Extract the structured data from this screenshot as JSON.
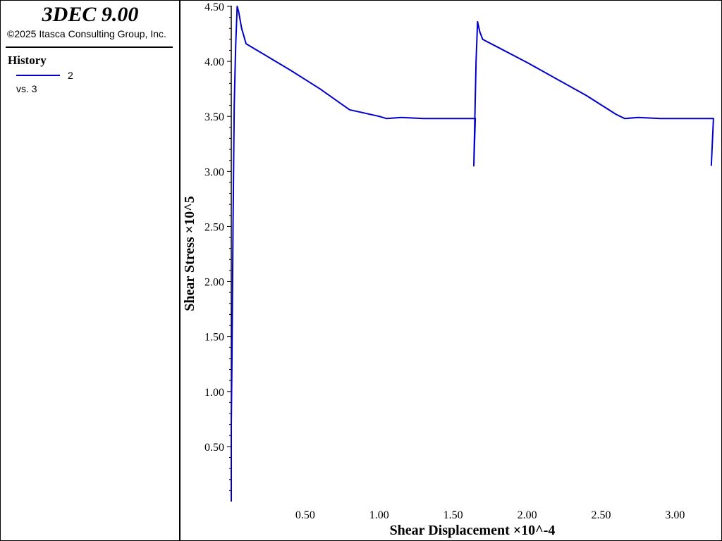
{
  "app": {
    "title": "3DEC 9.00",
    "copyright": "©2025 Itasca Consulting Group, Inc."
  },
  "history_panel": {
    "heading": "History",
    "entry_id": "2",
    "entry_vs": "vs. 3",
    "line_color": "#0000cc"
  },
  "chart_data": {
    "type": "line",
    "xlabel": "Shear Displacement ×10^-4",
    "ylabel": "Shear Stress ×10^5",
    "xlim": [
      0.0,
      3.27
    ],
    "ylim": [
      0.0,
      4.5
    ],
    "x_tick_values": [
      0.5,
      1.0,
      1.5,
      2.0,
      2.5,
      3.0
    ],
    "x_tick_labels": [
      "0.50",
      "1.00",
      "1.50",
      "2.00",
      "2.50",
      "3.00"
    ],
    "y_tick_values": [
      0.5,
      1.0,
      1.5,
      2.0,
      2.5,
      3.0,
      3.5,
      4.0,
      4.5
    ],
    "y_tick_labels": [
      "0.50",
      "1.00",
      "1.50",
      "2.00",
      "2.50",
      "3.00",
      "3.50",
      "4.00",
      "4.50"
    ],
    "grid": false,
    "legend": "left panel",
    "series": [
      {
        "name": "2",
        "color": "#0000cc",
        "x": [
          0.0,
          0.0,
          0.005,
          0.012,
          0.02,
          0.03,
          0.04,
          0.05,
          0.07,
          0.1,
          0.2,
          0.4,
          0.6,
          0.8,
          1.0,
          1.05,
          1.15,
          1.3,
          1.5,
          1.65,
          1.64,
          1.655,
          1.665,
          1.68,
          1.7,
          1.8,
          2.0,
          2.2,
          2.4,
          2.6,
          2.66,
          2.75,
          2.9,
          3.1,
          3.26,
          3.245
        ],
        "y": [
          0.0,
          0.7,
          1.3,
          2.5,
          3.6,
          4.15,
          4.5,
          4.45,
          4.3,
          4.16,
          4.08,
          3.92,
          3.75,
          3.56,
          3.5,
          3.48,
          3.49,
          3.48,
          3.48,
          3.48,
          3.05,
          4.0,
          4.36,
          4.27,
          4.2,
          4.13,
          3.99,
          3.84,
          3.69,
          3.52,
          3.48,
          3.49,
          3.48,
          3.48,
          3.48,
          3.05
        ]
      }
    ]
  }
}
